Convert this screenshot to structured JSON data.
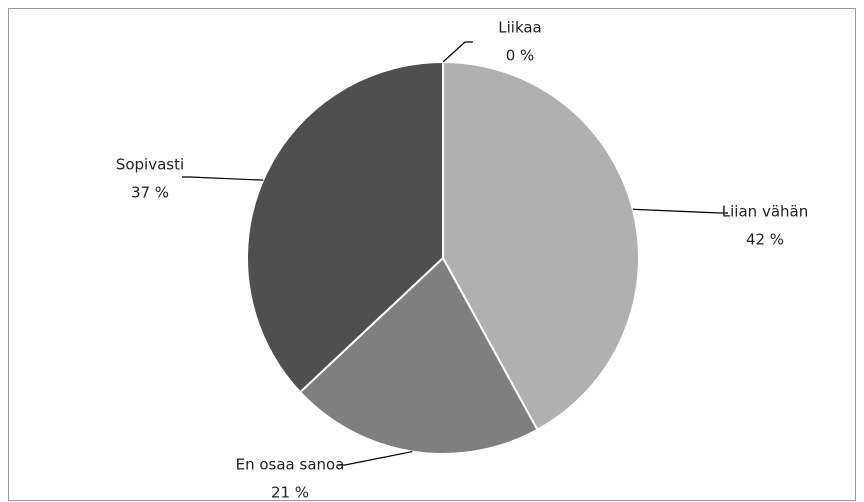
{
  "chart_data": {
    "type": "pie",
    "categories": [
      "Liian vähän",
      "En osaa sanoa",
      "Sopivasti",
      "Liikaa"
    ],
    "values": [
      42,
      21,
      37,
      0
    ],
    "value_labels": [
      "42 %",
      "21 %",
      "37 %",
      "0 %"
    ],
    "colors": [
      "#b0b0b0",
      "#7f7f7f",
      "#4f4f4f",
      "#d9d9d9"
    ]
  }
}
